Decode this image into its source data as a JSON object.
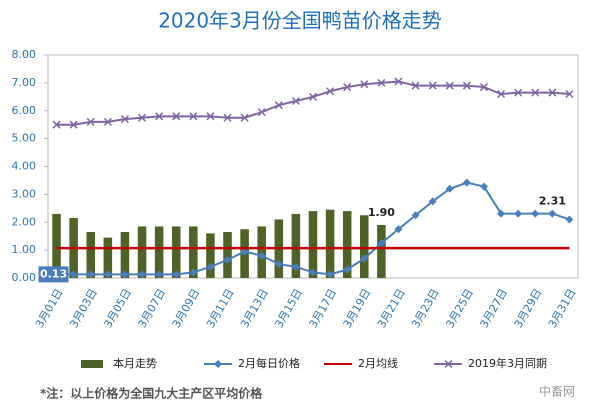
{
  "chart_data": {
    "type": "combo",
    "title": "2020年3月份全国鸭苗价格走势",
    "note": "*注：以上价格为全国九大主产区平均价格",
    "watermark": "中畜网",
    "categories": [
      "3月01日",
      null,
      "3月03日",
      null,
      "3月05日",
      null,
      "3月07日",
      null,
      "3月09日",
      null,
      "3月11日",
      null,
      "3月13日",
      null,
      "3月15日",
      null,
      "3月17日",
      null,
      "3月19日",
      null,
      "3月21日",
      null,
      "3月23日",
      null,
      "3月25日",
      null,
      "3月27日",
      null,
      "3月29日",
      null,
      "3月31日"
    ],
    "ylim": [
      0,
      8
    ],
    "yticks": [
      {
        "value": 0,
        "label": "0.00"
      },
      {
        "value": 1,
        "label": "1.00"
      },
      {
        "value": 2,
        "label": "2.00"
      },
      {
        "value": 3,
        "label": "3.00"
      },
      {
        "value": 4,
        "label": "4.00"
      },
      {
        "value": 5,
        "label": "5.00"
      },
      {
        "value": 6,
        "label": "6.00"
      },
      {
        "value": 7,
        "label": "7.00"
      },
      {
        "value": 8,
        "label": "8.00"
      }
    ],
    "grid": false,
    "legend": "bottom",
    "series": [
      {
        "name": "本月走势",
        "type": "bar",
        "color": "#4f6228",
        "values": [
          2.3,
          2.15,
          1.65,
          1.45,
          1.65,
          1.85,
          1.85,
          1.85,
          1.85,
          1.6,
          1.65,
          1.75,
          1.85,
          2.1,
          2.3,
          2.4,
          2.45,
          2.4,
          2.25,
          1.9,
          null,
          null,
          null,
          null,
          null,
          null,
          null,
          null,
          null,
          null,
          null
        ],
        "value_labels": [
          null,
          null,
          null,
          null,
          null,
          null,
          null,
          null,
          null,
          null,
          null,
          null,
          null,
          null,
          null,
          null,
          null,
          null,
          null,
          "1.90",
          null,
          null,
          null,
          null,
          null,
          null,
          null,
          null,
          null,
          null,
          null
        ]
      },
      {
        "name": "2月每日价格",
        "type": "line",
        "marker": "diamond",
        "color": "#4a7ebb",
        "values": [
          0.13,
          0.13,
          0.13,
          0.13,
          0.13,
          0.13,
          0.13,
          0.13,
          0.2,
          0.4,
          0.65,
          0.95,
          0.8,
          0.5,
          0.4,
          0.2,
          0.13,
          0.3,
          0.7,
          1.25,
          1.75,
          2.25,
          2.75,
          3.2,
          3.42,
          3.28,
          2.31,
          2.31,
          2.31,
          2.31,
          2.1
        ],
        "value_labels": [
          "0.13",
          null,
          null,
          null,
          null,
          null,
          null,
          null,
          null,
          null,
          null,
          null,
          null,
          null,
          null,
          null,
          null,
          null,
          null,
          null,
          null,
          null,
          null,
          null,
          null,
          null,
          null,
          null,
          null,
          "2.31",
          null
        ]
      },
      {
        "name": "2月均线",
        "type": "line",
        "marker": "none",
        "color": "#c00000",
        "values": [
          1.07,
          1.07,
          1.07,
          1.07,
          1.07,
          1.07,
          1.07,
          1.07,
          1.07,
          1.07,
          1.07,
          1.07,
          1.07,
          1.07,
          1.07,
          1.07,
          1.07,
          1.07,
          1.07,
          1.07,
          1.07,
          1.07,
          1.07,
          1.07,
          1.07,
          1.07,
          1.07,
          1.07,
          1.07,
          1.07,
          1.07
        ]
      },
      {
        "name": "2019年3月同期",
        "type": "line",
        "marker": "x",
        "color": "#8064a2",
        "values": [
          5.5,
          5.5,
          5.6,
          5.6,
          5.7,
          5.75,
          5.8,
          5.8,
          5.8,
          5.8,
          5.75,
          5.75,
          5.95,
          6.2,
          6.35,
          6.5,
          6.7,
          6.85,
          6.95,
          7.0,
          7.05,
          6.9,
          6.9,
          6.9,
          6.9,
          6.85,
          6.6,
          6.65,
          6.65,
          6.65,
          6.6
        ]
      }
    ]
  }
}
